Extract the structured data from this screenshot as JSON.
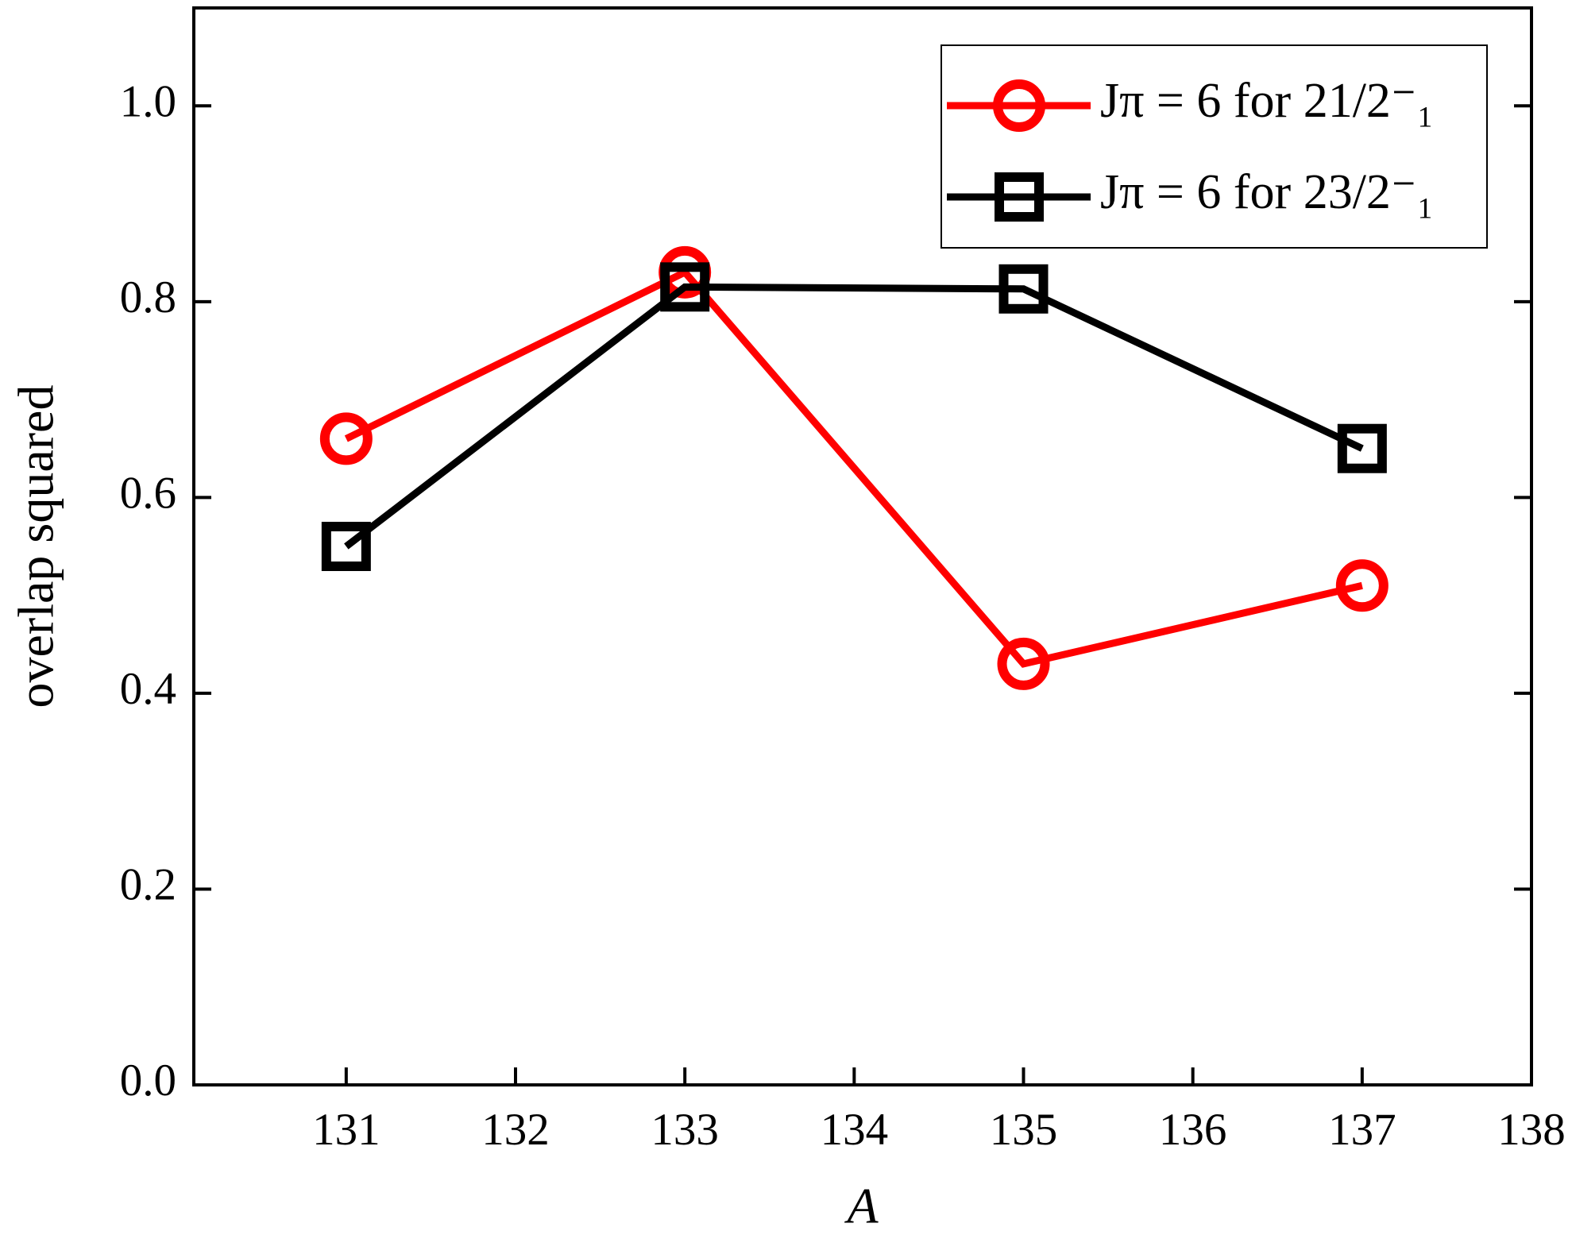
{
  "chart_data": {
    "type": "line",
    "xlabel": "A",
    "ylabel": "overlap squared",
    "xlim": [
      130.1,
      138
    ],
    "xticks": [
      131,
      132,
      133,
      134,
      135,
      136,
      137,
      138
    ],
    "ylim": [
      0,
      1.1
    ],
    "yticks": [
      {
        "value": 0,
        "label": "0.0"
      },
      {
        "value": 0.2,
        "label": "0.2"
      },
      {
        "value": 0.4,
        "label": "0.4"
      },
      {
        "value": 0.6,
        "label": "0.6"
      },
      {
        "value": 0.8,
        "label": "0.8"
      },
      {
        "value": 1,
        "label": "1.0"
      }
    ],
    "x": [
      131,
      133,
      135,
      137
    ],
    "legend": "upper right",
    "series": [
      {
        "name": "Jπ = 6 for 21/2⁻₁",
        "color": "#ff0000",
        "marker": "circle",
        "values": [
          0.66,
          0.83,
          0.43,
          0.51
        ]
      },
      {
        "name": "Jπ = 6 for 23/2⁻₁",
        "color": "#000000",
        "marker": "square",
        "values": [
          0.55,
          0.815,
          0.813,
          0.65
        ]
      }
    ]
  }
}
